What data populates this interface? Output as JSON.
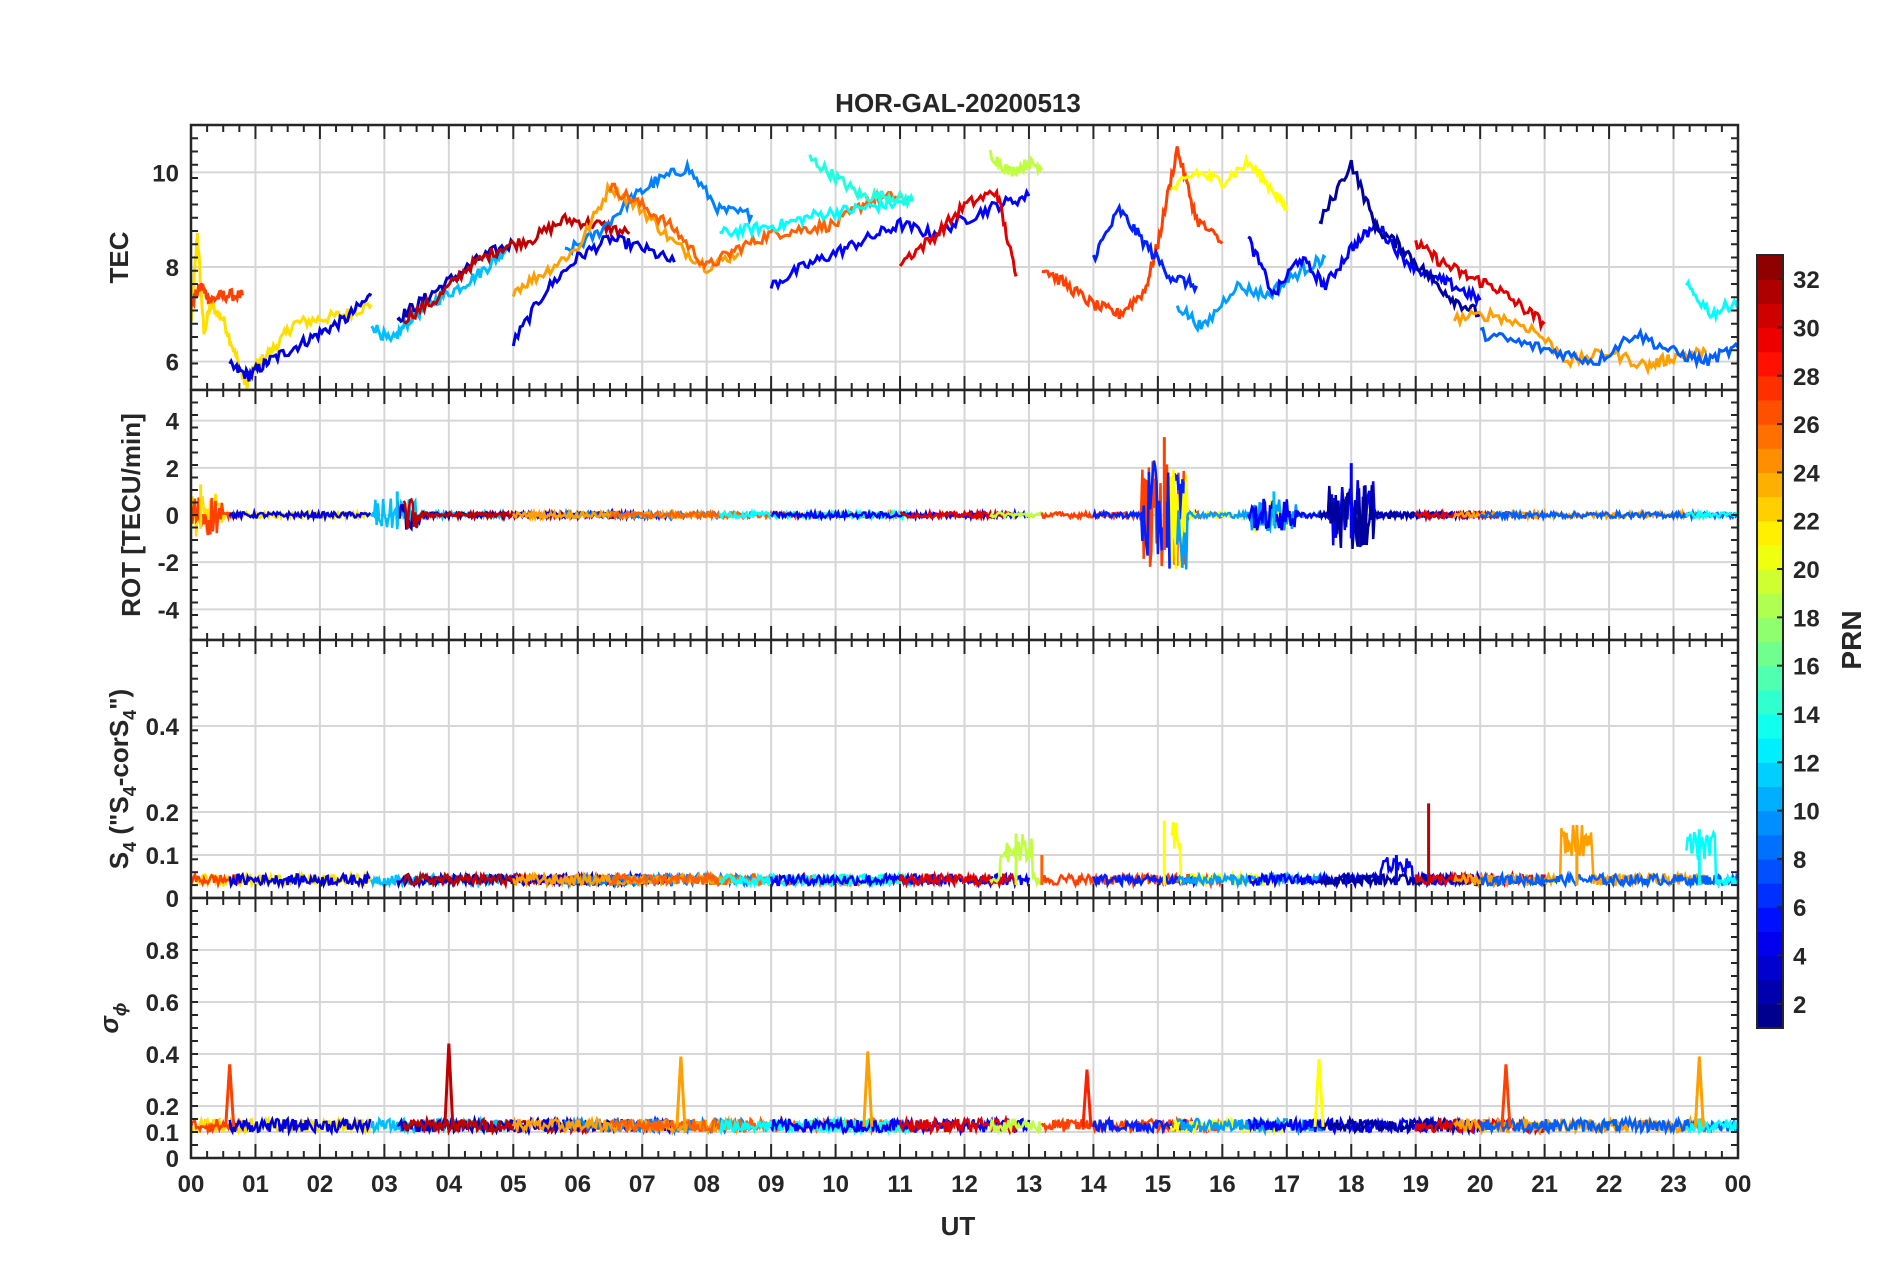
{
  "figure": {
    "title": "HOR-GAL-20200513",
    "xlabel": "UT",
    "x_ticks": [
      "00",
      "01",
      "02",
      "03",
      "04",
      "05",
      "06",
      "07",
      "08",
      "09",
      "10",
      "11",
      "12",
      "13",
      "14",
      "15",
      "16",
      "17",
      "18",
      "19",
      "20",
      "21",
      "22",
      "23",
      "00"
    ]
  },
  "panels": [
    {
      "id": "tec",
      "ylabel": "TEC",
      "ylim": [
        5.4,
        11
      ],
      "yticks": [
        6,
        8,
        10
      ],
      "ytick_labels": [
        "6",
        "8",
        "10"
      ]
    },
    {
      "id": "rot",
      "ylabel": "ROT [TECU/min]",
      "ylim": [
        -5.3,
        5.3
      ],
      "yticks": [
        -4,
        -2,
        0,
        2,
        4
      ],
      "ytick_labels": [
        "-4",
        "-2",
        "0",
        "2",
        "4"
      ]
    },
    {
      "id": "s4",
      "ylabel_main": "S",
      "ylabel_sub1": "4",
      "ylabel_mid": " (\"S",
      "ylabel_sub2": "4",
      "ylabel_mid2": "-corS",
      "ylabel_sub3": "4",
      "ylabel_end": "\")",
      "ylim": [
        0,
        0.6
      ],
      "yticks": [
        0,
        0.1,
        0.2,
        0.4
      ],
      "ytick_labels": [
        "0",
        "0.1",
        "0.2",
        "0.4"
      ]
    },
    {
      "id": "sigma",
      "ylabel_main": "σ",
      "ylabel_sub": "ϕ",
      "ylim": [
        0,
        1
      ],
      "yticks": [
        0,
        0.1,
        0.2,
        0.4,
        0.6,
        0.8
      ],
      "ytick_labels": [
        "0",
        "0.1",
        "0.2",
        "0.4",
        "0.6",
        "0.8"
      ]
    }
  ],
  "colorbar": {
    "label": "PRN",
    "range": [
      1,
      33
    ],
    "ticks": [
      "2",
      "4",
      "6",
      "8",
      "10",
      "12",
      "14",
      "16",
      "18",
      "20",
      "22",
      "24",
      "26",
      "28",
      "30",
      "32"
    ],
    "colormap": "jet"
  },
  "chart_data": {
    "type": "line",
    "title": "HOR-GAL-20200513",
    "xlabel": "UT",
    "x_range_hours": [
      0,
      24
    ],
    "grid": true,
    "series_color_by": "PRN",
    "tec_series": [
      {
        "prn": 22,
        "x": [
          0.0,
          0.1,
          0.2,
          0.3,
          0.5,
          0.7,
          0.85,
          1.0,
          1.3,
          1.6,
          2.0,
          2.4,
          2.8
        ],
        "y": [
          6.8,
          8.7,
          6.6,
          7.2,
          6.9,
          6.1,
          5.5,
          5.9,
          6.3,
          6.8,
          6.9,
          7.0,
          7.2
        ]
      },
      {
        "prn": 27,
        "x": [
          0.0,
          0.15,
          0.3,
          0.5,
          0.8
        ],
        "y": [
          7.2,
          7.6,
          7.3,
          7.4,
          7.4
        ]
      },
      {
        "prn": 4,
        "x": [
          0.6,
          0.9,
          1.2,
          1.6,
          2.0,
          2.4,
          2.8
        ],
        "y": [
          5.9,
          5.7,
          6.0,
          6.3,
          6.6,
          6.9,
          7.4
        ]
      },
      {
        "prn": 11,
        "x": [
          2.8,
          3.1,
          3.4,
          3.8,
          4.2,
          4.6,
          4.9
        ],
        "y": [
          6.8,
          6.4,
          6.9,
          7.3,
          7.6,
          8.0,
          8.4
        ]
      },
      {
        "prn": 3,
        "x": [
          3.2,
          3.6,
          4.0,
          4.5,
          5.0
        ],
        "y": [
          6.9,
          7.3,
          7.7,
          8.2,
          8.5
        ]
      },
      {
        "prn": 31,
        "x": [
          3.3,
          3.8,
          4.3,
          4.8,
          5.3,
          5.8,
          6.3,
          6.8
        ],
        "y": [
          6.9,
          7.3,
          8.0,
          8.4,
          8.6,
          9.0,
          8.9,
          8.7
        ]
      },
      {
        "prn": 4,
        "x": [
          5.0,
          5.5,
          6.0,
          6.5,
          7.0,
          7.5
        ],
        "y": [
          6.4,
          7.5,
          8.2,
          8.6,
          8.4,
          8.1
        ]
      },
      {
        "prn": 9,
        "x": [
          5.8,
          6.3,
          6.8,
          7.2,
          7.7,
          8.2,
          8.7
        ],
        "y": [
          8.3,
          8.7,
          9.4,
          9.8,
          10.1,
          9.2,
          9.1
        ]
      },
      {
        "prn": 24,
        "x": [
          5.0,
          5.5,
          6.0,
          6.5,
          7.0,
          7.5,
          8.0,
          8.5
        ],
        "y": [
          7.5,
          7.9,
          8.4,
          9.7,
          9.2,
          8.5,
          8.0,
          8.3
        ]
      },
      {
        "prn": 26,
        "x": [
          6.5,
          7.0,
          7.5,
          8.0,
          8.5,
          9.0,
          9.5,
          10.0,
          10.5,
          11.0
        ],
        "y": [
          9.7,
          9.3,
          8.8,
          8.0,
          8.4,
          8.7,
          8.8,
          8.9,
          9.4,
          9.5
        ]
      },
      {
        "prn": 13,
        "x": [
          8.2,
          8.7,
          9.2,
          9.7,
          10.2,
          10.7,
          11.2
        ],
        "y": [
          8.7,
          8.8,
          8.9,
          9.1,
          9.2,
          9.3,
          9.4
        ]
      },
      {
        "prn": 14,
        "x": [
          9.6,
          10.0,
          10.4,
          10.8,
          11.2
        ],
        "y": [
          10.3,
          9.9,
          9.5,
          9.5,
          9.4
        ]
      },
      {
        "prn": 5,
        "x": [
          9.0,
          9.5,
          10.0,
          10.5,
          11.0,
          11.5,
          12.0,
          12.5,
          13.0
        ],
        "y": [
          7.6,
          8.0,
          8.3,
          8.6,
          8.9,
          8.7,
          9.0,
          9.3,
          9.5
        ]
      },
      {
        "prn": 30,
        "x": [
          11.0,
          11.5,
          12.0,
          12.5,
          12.8
        ],
        "y": [
          8.1,
          8.6,
          9.3,
          9.6,
          7.8
        ]
      },
      {
        "prn": 19,
        "x": [
          12.4,
          12.7,
          13.0,
          13.2
        ],
        "y": [
          10.4,
          10.0,
          10.2,
          10.1
        ]
      },
      {
        "prn": 27,
        "x": [
          13.2,
          13.6,
          14.0,
          14.4,
          14.8,
          15.0,
          15.3,
          15.6,
          16.0
        ],
        "y": [
          8.0,
          7.6,
          7.2,
          7.0,
          7.5,
          8.5,
          10.5,
          9.0,
          8.5
        ]
      },
      {
        "prn": 6,
        "x": [
          14.0,
          14.4,
          14.8,
          15.2,
          15.6
        ],
        "y": [
          8.2,
          9.2,
          8.5,
          7.8,
          7.6
        ]
      },
      {
        "prn": 21,
        "x": [
          15.2,
          15.6,
          16.0,
          16.4,
          16.8,
          17.0
        ],
        "y": [
          9.6,
          10.0,
          9.8,
          10.2,
          9.6,
          9.2
        ]
      },
      {
        "prn": 10,
        "x": [
          15.3,
          15.7,
          16.2,
          16.7,
          17.2,
          17.6
        ],
        "y": [
          7.2,
          6.7,
          7.6,
          7.4,
          7.9,
          8.2
        ]
      },
      {
        "prn": 5,
        "x": [
          16.4,
          16.8,
          17.2,
          17.6,
          18.0,
          18.4,
          18.8,
          19.2,
          19.6,
          20.0
        ],
        "y": [
          8.6,
          7.4,
          8.2,
          7.6,
          8.4,
          8.9,
          8.2,
          7.8,
          7.6,
          7.3
        ]
      },
      {
        "prn": 2,
        "x": [
          17.5,
          18.0,
          18.4,
          18.8,
          19.2,
          19.6,
          20.0
        ],
        "y": [
          8.9,
          10.2,
          8.8,
          8.4,
          7.8,
          7.3,
          7.0
        ]
      },
      {
        "prn": 30,
        "x": [
          19.0,
          19.4,
          19.8,
          20.2,
          20.6,
          21.0
        ],
        "y": [
          8.5,
          8.1,
          7.8,
          7.6,
          7.2,
          6.8
        ]
      },
      {
        "prn": 24,
        "x": [
          19.6,
          20.2,
          20.8,
          21.4,
          22.0,
          22.6,
          23.0,
          23.5
        ],
        "y": [
          6.9,
          7.0,
          6.7,
          6.0,
          6.2,
          5.9,
          6.1,
          6.2
        ]
      },
      {
        "prn": 8,
        "x": [
          20.0,
          20.6,
          21.2,
          21.8,
          22.4,
          23.0,
          23.5,
          24.0
        ],
        "y": [
          6.6,
          6.4,
          6.2,
          6.0,
          6.6,
          6.2,
          6.0,
          6.3
        ]
      },
      {
        "prn": 13,
        "x": [
          23.2,
          23.6,
          24.0
        ],
        "y": [
          7.6,
          7.0,
          7.3
        ]
      }
    ],
    "rot_burst_events": [
      {
        "prn": 22,
        "center_hour": 0.15,
        "amplitude_tecu_per_min": 1.3
      },
      {
        "prn": 11,
        "center_hour": 3.2,
        "amplitude_tecu_per_min": 1.0
      },
      {
        "prn": 27,
        "center_hour": 15.1,
        "amplitude_tecu_per_min": 3.3
      },
      {
        "prn": 11,
        "center_hour": 16.8,
        "amplitude_tecu_per_min": 1.0
      },
      {
        "prn": 5,
        "center_hour": 18.0,
        "amplitude_tecu_per_min": 2.2
      }
    ],
    "s4_events": [
      {
        "prn": 19,
        "hour": 12.8,
        "value": 0.15
      },
      {
        "prn": 26,
        "hour": 13.2,
        "value": 0.1
      },
      {
        "prn": 21,
        "hour": 15.1,
        "value": 0.18
      },
      {
        "prn": 5,
        "hour": 18.7,
        "value": 0.1
      },
      {
        "prn": 31,
        "hour": 19.2,
        "value": 0.22
      },
      {
        "prn": 24,
        "hour": 21.5,
        "value": 0.17
      },
      {
        "prn": 13,
        "hour": 23.4,
        "value": 0.16
      }
    ],
    "sigma_phi_spikes": [
      {
        "prn": 27,
        "hour": 0.6,
        "value": 0.36
      },
      {
        "prn": 31,
        "hour": 4.0,
        "value": 0.44
      },
      {
        "prn": 24,
        "hour": 7.6,
        "value": 0.39
      },
      {
        "prn": 24,
        "hour": 10.5,
        "value": 0.41
      },
      {
        "prn": 28,
        "hour": 13.9,
        "value": 0.34
      },
      {
        "prn": 21,
        "hour": 17.5,
        "value": 0.38
      },
      {
        "prn": 27,
        "hour": 20.4,
        "value": 0.36
      },
      {
        "prn": 24,
        "hour": 23.4,
        "value": 0.39
      }
    ]
  }
}
